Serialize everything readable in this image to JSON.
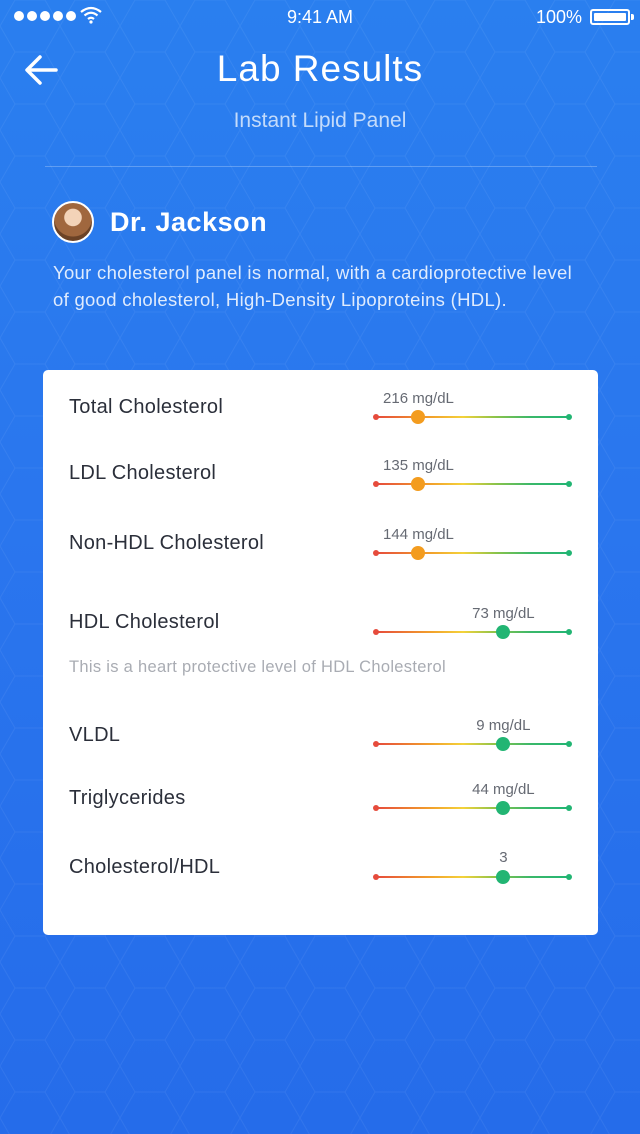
{
  "status_bar": {
    "time": "9:41 AM",
    "battery": "100%"
  },
  "header": {
    "title": "Lab Results",
    "subtitle": "Instant Lipid Panel"
  },
  "doctor": {
    "name": "Dr. Jackson",
    "message": "Your cholesterol panel is normal, with a cardioprotective level of good cholesterol, High-Density Lipoproteins (HDL)."
  },
  "results": [
    {
      "label": "Total Cholesterol",
      "value": "216 mg/dL",
      "level": 0.22,
      "knob_color": "#f39c1f"
    },
    {
      "label": "LDL Cholesterol",
      "value": "135 mg/dL",
      "level": 0.22,
      "knob_color": "#f39c1f"
    },
    {
      "label": "Non-HDL Cholesterol",
      "value": "144 mg/dL",
      "level": 0.22,
      "knob_color": "#f39c1f"
    },
    {
      "label": "HDL Cholesterol",
      "value": "73 mg/dL",
      "level": 0.66,
      "knob_color": "#22b573"
    },
    {
      "label": "VLDL",
      "value": "9 mg/dL",
      "level": 0.66,
      "knob_color": "#22b573"
    },
    {
      "label": "Triglycerides",
      "value": "44 mg/dL",
      "level": 0.66,
      "knob_color": "#22b573"
    },
    {
      "label": "Cholesterol/HDL",
      "value": "3",
      "level": 0.66,
      "knob_color": "#22b573"
    }
  ],
  "hdl_note": "This is a heart protective level of HDL Cholesterol"
}
